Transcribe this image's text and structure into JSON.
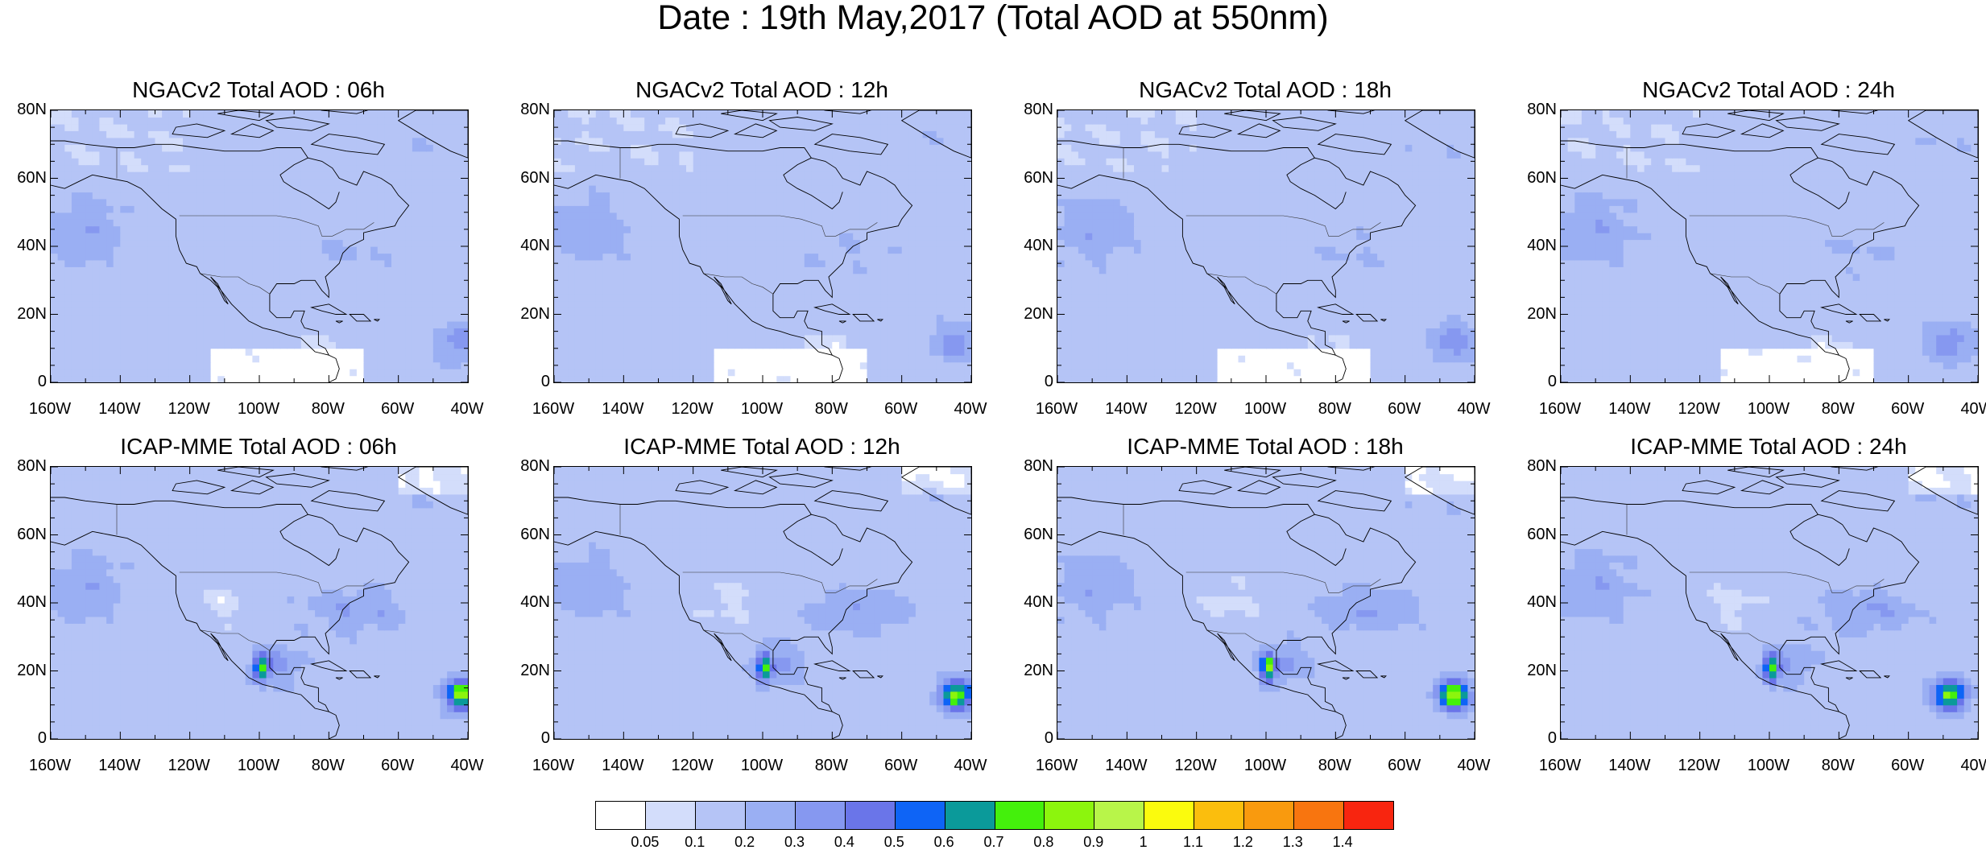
{
  "title": "Date : 19th May,2017 (Total AOD at 550nm)",
  "panels": [
    {
      "title": "NGACv2 Total AOD : 06h",
      "model": "ngac",
      "hour": 6
    },
    {
      "title": "NGACv2 Total AOD : 12h",
      "model": "ngac",
      "hour": 12
    },
    {
      "title": "NGACv2 Total AOD : 18h",
      "model": "ngac",
      "hour": 18
    },
    {
      "title": "NGACv2 Total AOD : 24h",
      "model": "ngac",
      "hour": 24
    },
    {
      "title": "ICAP-MME Total AOD : 06h",
      "model": "icap",
      "hour": 6
    },
    {
      "title": "ICAP-MME Total AOD : 12h",
      "model": "icap",
      "hour": 12
    },
    {
      "title": "ICAP-MME Total AOD : 18h",
      "model": "icap",
      "hour": 18
    },
    {
      "title": "ICAP-MME Total AOD : 24h",
      "model": "icap",
      "hour": 24
    }
  ],
  "axes": {
    "lat_labels": [
      "80N",
      "60N",
      "40N",
      "20N",
      "0"
    ],
    "lon_labels": [
      "160W",
      "140W",
      "120W",
      "100W",
      "80W",
      "60W",
      "40W"
    ],
    "lat_range": [
      0,
      80
    ],
    "lon_range": [
      -160,
      -40
    ]
  },
  "colorbar": {
    "labels": [
      "0.05",
      "0.1",
      "0.2",
      "0.3",
      "0.4",
      "0.5",
      "0.6",
      "0.7",
      "0.8",
      "0.9",
      "1",
      "1.1",
      "1.2",
      "1.3",
      "1.4"
    ],
    "colors": [
      "#ffffff",
      "#d3ddfb",
      "#b5c4f6",
      "#9aaff3",
      "#8698f0",
      "#6a75e9",
      "#0e64f6",
      "#0b9a9a",
      "#44f00c",
      "#8cf50d",
      "#b8f549",
      "#fbfb0d",
      "#fbbe0d",
      "#f99a0e",
      "#f8750f",
      "#f8250f"
    ]
  }
}
